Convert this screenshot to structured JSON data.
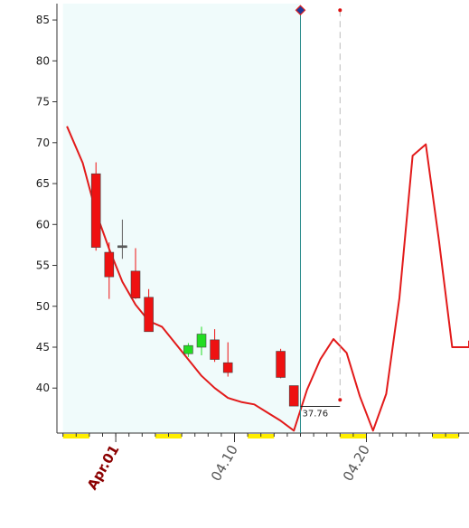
{
  "chart_data": {
    "type": "candlestick",
    "title": "",
    "xlabel": "",
    "ylabel": "",
    "ylim": [
      34.5,
      87
    ],
    "y_ticks": [
      40,
      45,
      50,
      55,
      60,
      65,
      70,
      75,
      80,
      85
    ],
    "x_tick_labels": [
      {
        "text": "Apr.01",
        "index": 3.5,
        "emphasis": true
      },
      {
        "text": "04.10",
        "index": 12.5,
        "emphasis": false
      },
      {
        "text": "04.20",
        "index": 22.5,
        "emphasis": false
      }
    ],
    "candles": [
      {
        "i": 2,
        "open": 66.2,
        "high": 67.6,
        "low": 56.8,
        "close": 57.2,
        "color": "down"
      },
      {
        "i": 3,
        "open": 56.6,
        "high": 57.8,
        "low": 50.9,
        "close": 53.6,
        "color": "down"
      },
      {
        "i": 4,
        "open": 57.4,
        "high": 60.6,
        "low": 55.8,
        "close": 57.2,
        "color": "flat"
      },
      {
        "i": 5,
        "open": 54.3,
        "high": 57.1,
        "low": 50.9,
        "close": 51.0,
        "color": "down"
      },
      {
        "i": 6,
        "open": 51.1,
        "high": 52.1,
        "low": 46.9,
        "close": 46.9,
        "color": "down"
      },
      {
        "i": 9,
        "open": 44.2,
        "high": 45.5,
        "low": 43.8,
        "close": 45.2,
        "color": "up"
      },
      {
        "i": 10,
        "open": 45.0,
        "high": 47.5,
        "low": 44.0,
        "close": 46.6,
        "color": "up"
      },
      {
        "i": 11,
        "open": 45.9,
        "high": 47.2,
        "low": 43.2,
        "close": 43.5,
        "color": "down"
      },
      {
        "i": 12,
        "open": 43.1,
        "high": 45.6,
        "low": 41.4,
        "close": 41.9,
        "color": "down"
      },
      {
        "i": 16,
        "open": 44.5,
        "high": 44.8,
        "low": 41.2,
        "close": 41.3,
        "color": "down"
      },
      {
        "i": 17,
        "open": 40.3,
        "high": 40.3,
        "low": 37.8,
        "close": 37.8,
        "color": "down"
      }
    ],
    "red_line": {
      "name": "",
      "points": [
        {
          "i": -0.2,
          "y": 72.0
        },
        {
          "i": 1,
          "y": 67.5
        },
        {
          "i": 2,
          "y": 61.5
        },
        {
          "i": 3,
          "y": 57.0
        },
        {
          "i": 4,
          "y": 53.0
        },
        {
          "i": 5,
          "y": 50.2
        },
        {
          "i": 6,
          "y": 48.2
        },
        {
          "i": 7,
          "y": 47.5
        },
        {
          "i": 8,
          "y": 45.5
        },
        {
          "i": 9,
          "y": 43.5
        },
        {
          "i": 10,
          "y": 41.5
        },
        {
          "i": 11,
          "y": 40.0
        },
        {
          "i": 12,
          "y": 38.8
        },
        {
          "i": 13,
          "y": 38.3
        },
        {
          "i": 14,
          "y": 38.0
        },
        {
          "i": 15,
          "y": 37.0
        },
        {
          "i": 16,
          "y": 36.0
        },
        {
          "i": 17,
          "y": 34.8
        },
        {
          "i": 18,
          "y": 39.8
        },
        {
          "i": 19,
          "y": 43.5
        },
        {
          "i": 20,
          "y": 46.0
        },
        {
          "i": 21,
          "y": 44.3
        },
        {
          "i": 22,
          "y": 39.0
        },
        {
          "i": 23,
          "y": 34.8
        },
        {
          "i": 24,
          "y": 39.3
        },
        {
          "i": 25,
          "y": 51.0
        },
        {
          "i": 26,
          "y": 68.4
        },
        {
          "i": 27,
          "y": 69.8
        },
        {
          "i": 28,
          "y": 58.0
        },
        {
          "i": 29,
          "y": 45.0
        },
        {
          "i": 30,
          "y": 45.0
        },
        {
          "i": 31,
          "y": 45.0
        },
        {
          "i": 32,
          "y": 45.8
        }
      ]
    },
    "highlight_region": {
      "from_index": -0.5,
      "to_index": 17.5,
      "color": "#f0fbfb"
    },
    "cursor_line": {
      "index": 17.5,
      "marker_y": 86.2,
      "color": "#2a8c8c"
    },
    "dashed_line": {
      "index": 20.5,
      "top_y": 86.2,
      "bottom_y": 39.0
    },
    "last_price": {
      "label": "37.76",
      "value": 37.76,
      "from_index": 17.5,
      "to_index": 20.5
    },
    "x_axis_highlight_ranges": [
      [
        0,
        1
      ],
      [
        7,
        8
      ],
      [
        14,
        15
      ],
      [
        21,
        22
      ],
      [
        28,
        29
      ]
    ],
    "colors": {
      "up": "#22dd22",
      "down": "#ee1111",
      "flat": "#5f5f5f",
      "line": "#e21a1a",
      "axis": "#333333",
      "tick_label": "#222222",
      "date_label": "#555555",
      "date_label_emphasis": "#8b0000",
      "highlight_bar": "#ffee00"
    }
  }
}
